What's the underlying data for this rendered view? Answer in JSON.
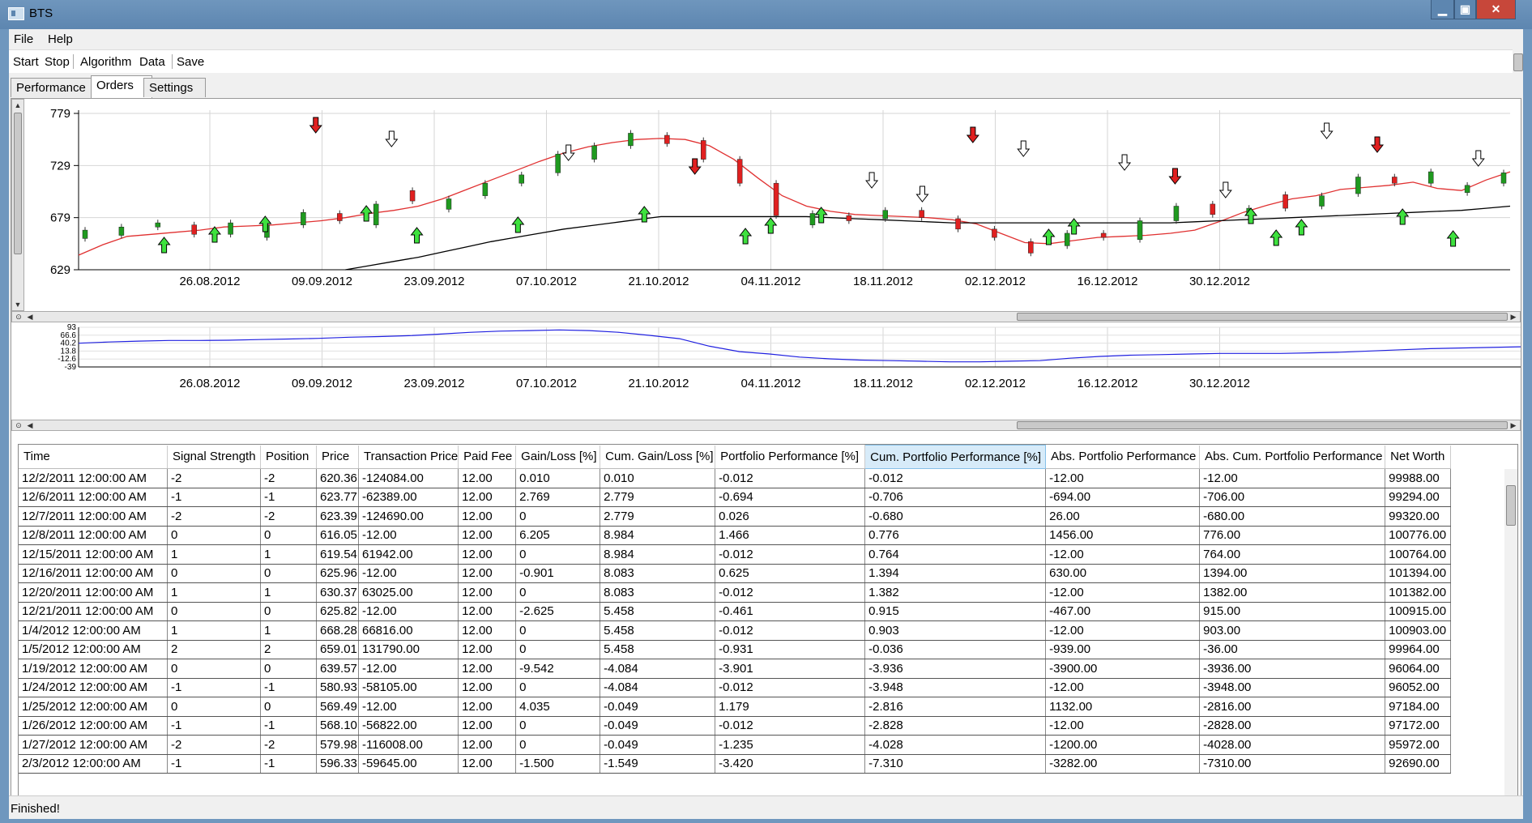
{
  "window": {
    "title": "BTS",
    "minimize": "▁",
    "maximize": "▣",
    "close": "✕"
  },
  "menu": {
    "file": "File",
    "help": "Help"
  },
  "toolbar": {
    "start": "Start",
    "stop": "Stop",
    "algorithm": "Algorithm",
    "data": "Data",
    "save": "Save"
  },
  "tabs": [
    {
      "label": "Performance"
    },
    {
      "label": "Orders"
    },
    {
      "label": "Settings"
    }
  ],
  "active_tab": "Orders",
  "chart_data": [
    {
      "type": "candlestick",
      "ylim": [
        629,
        779
      ],
      "y_ticks": [
        "779",
        "729",
        "679",
        "629"
      ],
      "x_ticks": [
        "26.08.2012",
        "09.09.2012",
        "23.09.2012",
        "07.10.2012",
        "21.10.2012",
        "04.11.2012",
        "18.11.2012",
        "02.12.2012",
        "16.12.2012",
        "30.12.2012"
      ],
      "series": [
        {
          "name": "",
          "color": "#e03030",
          "kind": "moving-average-fast",
          "values": [
            643,
            653,
            661,
            663,
            665,
            667,
            670,
            671,
            672,
            674,
            676,
            679,
            683,
            686,
            690,
            697,
            706,
            715,
            724,
            733,
            741,
            747,
            751,
            754,
            755,
            754,
            748,
            735,
            717,
            700,
            690,
            685,
            682,
            681,
            680,
            679,
            677,
            673,
            664,
            655,
            654,
            657,
            660,
            661,
            662,
            664,
            667,
            675,
            684,
            691,
            697,
            700,
            706,
            708,
            710,
            713,
            707,
            705,
            715,
            723
          ]
        },
        {
          "name": "",
          "color": "#000000",
          "kind": "moving-average-slow",
          "values": [
            null,
            null,
            null,
            null,
            null,
            null,
            null,
            null,
            null,
            null,
            null,
            629,
            633,
            637,
            641,
            646,
            651,
            656,
            660,
            664,
            668,
            671,
            674,
            677,
            680,
            680,
            680,
            680,
            680,
            680,
            680,
            679,
            678,
            677,
            676,
            675,
            674,
            674,
            674,
            674,
            674,
            674,
            674,
            674,
            674,
            674,
            675,
            676,
            677,
            678,
            679,
            680,
            681,
            682,
            683,
            684,
            685,
            686,
            688,
            690
          ]
        }
      ],
      "candles": [
        {
          "c": "g",
          "o": 659,
          "cl": 667
        },
        {
          "c": "g",
          "o": 662,
          "cl": 670
        },
        {
          "c": "g",
          "o": 670,
          "cl": 674
        },
        {
          "c": "r",
          "o": 672,
          "cl": 663
        },
        {
          "c": "g",
          "o": 663,
          "cl": 674
        },
        {
          "c": "g",
          "o": 660,
          "cl": 672
        },
        {
          "c": "g",
          "o": 672,
          "cl": 684
        },
        {
          "c": "r",
          "o": 683,
          "cl": 676
        },
        {
          "c": "g",
          "o": 672,
          "cl": 692
        },
        {
          "c": "r",
          "o": 705,
          "cl": 695
        },
        {
          "c": "g",
          "o": 687,
          "cl": 697
        },
        {
          "c": "g",
          "o": 700,
          "cl": 712
        },
        {
          "c": "g",
          "o": 712,
          "cl": 720
        },
        {
          "c": "g",
          "o": 722,
          "cl": 740
        },
        {
          "c": "g",
          "o": 735,
          "cl": 748
        },
        {
          "c": "g",
          "o": 748,
          "cl": 760
        },
        {
          "c": "r",
          "o": 758,
          "cl": 750
        },
        {
          "c": "r",
          "o": 753,
          "cl": 735
        },
        {
          "c": "r",
          "o": 735,
          "cl": 712
        },
        {
          "c": "r",
          "o": 712,
          "cl": 681
        },
        {
          "c": "g",
          "o": 672,
          "cl": 683
        },
        {
          "c": "r",
          "o": 681,
          "cl": 676
        },
        {
          "c": "g",
          "o": 678,
          "cl": 686
        },
        {
          "c": "r",
          "o": 686,
          "cl": 679
        },
        {
          "c": "r",
          "o": 678,
          "cl": 668
        },
        {
          "c": "r",
          "o": 668,
          "cl": 660
        },
        {
          "c": "r",
          "o": 656,
          "cl": 645
        },
        {
          "c": "g",
          "o": 652,
          "cl": 664
        },
        {
          "c": "r",
          "o": 664,
          "cl": 660
        },
        {
          "c": "g",
          "o": 658,
          "cl": 676
        },
        {
          "c": "g",
          "o": 676,
          "cl": 690
        },
        {
          "c": "r",
          "o": 692,
          "cl": 682
        },
        {
          "c": "g",
          "o": 681,
          "cl": 688
        },
        {
          "c": "r",
          "o": 701,
          "cl": 688
        },
        {
          "c": "g",
          "o": 690,
          "cl": 700
        },
        {
          "c": "g",
          "o": 702,
          "cl": 718
        },
        {
          "c": "r",
          "o": 718,
          "cl": 712
        },
        {
          "c": "g",
          "o": 712,
          "cl": 723
        },
        {
          "c": "g",
          "o": 703,
          "cl": 710
        },
        {
          "c": "g",
          "o": 712,
          "cl": 722
        }
      ]
    },
    {
      "type": "line",
      "ylim": [
        -39,
        93
      ],
      "y_ticks": [
        "93",
        "66.6",
        "40.2",
        "13.8",
        "-12.6",
        "-39"
      ],
      "x_ticks": [
        "26.08.2012",
        "09.09.2012",
        "23.09.2012",
        "07.10.2012",
        "21.10.2012",
        "04.11.2012",
        "18.11.2012",
        "02.12.2012",
        "16.12.2012",
        "30.12.2012"
      ],
      "series": [
        {
          "name": "",
          "color": "#2020e0",
          "values": [
            40,
            44,
            47,
            49,
            49,
            50,
            52,
            54,
            56,
            60,
            62,
            65,
            70,
            76,
            80,
            82,
            84,
            82,
            76,
            66,
            55,
            30,
            12,
            4,
            -6,
            -12,
            -16,
            -18,
            -20,
            -22,
            -22,
            -20,
            -18,
            -10,
            -4,
            0,
            2,
            4,
            6,
            6,
            6,
            8,
            10,
            14,
            18,
            22,
            24,
            26,
            28
          ]
        }
      ]
    }
  ],
  "grid": {
    "columns": [
      "Time",
      "Signal Strength",
      "Position",
      "Price",
      "Transaction Price",
      "Paid Fee",
      "Gain/Loss [%]",
      "Cum. Gain/Loss [%]",
      "Portfolio Performance [%]",
      "Cum. Portfolio Performance [%]",
      "Abs. Portfolio Performance",
      "Abs. Cum. Portfolio Performance",
      "Net Worth"
    ],
    "rows": [
      [
        "12/2/2011 12:00:00 AM",
        "-2",
        "-2",
        "620.36",
        "-124084.00",
        "12.00",
        "0.010",
        "0.010",
        "-0.012",
        "-0.012",
        "-12.00",
        "-12.00",
        "99988.00"
      ],
      [
        "12/6/2011 12:00:00 AM",
        "-1",
        "-1",
        "623.77",
        "-62389.00",
        "12.00",
        "2.769",
        "2.779",
        "-0.694",
        "-0.706",
        "-694.00",
        "-706.00",
        "99294.00"
      ],
      [
        "12/7/2011 12:00:00 AM",
        "-2",
        "-2",
        "623.39",
        "-124690.00",
        "12.00",
        "0",
        "2.779",
        "0.026",
        "-0.680",
        "26.00",
        "-680.00",
        "99320.00"
      ],
      [
        "12/8/2011 12:00:00 AM",
        "0",
        "0",
        "616.05",
        "-12.00",
        "12.00",
        "6.205",
        "8.984",
        "1.466",
        "0.776",
        "1456.00",
        "776.00",
        "100776.00"
      ],
      [
        "12/15/2011 12:00:00 AM",
        "1",
        "1",
        "619.54",
        "61942.00",
        "12.00",
        "0",
        "8.984",
        "-0.012",
        "0.764",
        "-12.00",
        "764.00",
        "100764.00"
      ],
      [
        "12/16/2011 12:00:00 AM",
        "0",
        "0",
        "625.96",
        "-12.00",
        "12.00",
        "-0.901",
        "8.083",
        "0.625",
        "1.394",
        "630.00",
        "1394.00",
        "101394.00"
      ],
      [
        "12/20/2011 12:00:00 AM",
        "1",
        "1",
        "630.37",
        "63025.00",
        "12.00",
        "0",
        "8.083",
        "-0.012",
        "1.382",
        "-12.00",
        "1382.00",
        "101382.00"
      ],
      [
        "12/21/2011 12:00:00 AM",
        "0",
        "0",
        "625.82",
        "-12.00",
        "12.00",
        "-2.625",
        "5.458",
        "-0.461",
        "0.915",
        "-467.00",
        "915.00",
        "100915.00"
      ],
      [
        "1/4/2012 12:00:00 AM",
        "1",
        "1",
        "668.28",
        "66816.00",
        "12.00",
        "0",
        "5.458",
        "-0.012",
        "0.903",
        "-12.00",
        "903.00",
        "100903.00"
      ],
      [
        "1/5/2012 12:00:00 AM",
        "2",
        "2",
        "659.01",
        "131790.00",
        "12.00",
        "0",
        "5.458",
        "-0.931",
        "-0.036",
        "-939.00",
        "-36.00",
        "99964.00"
      ],
      [
        "1/19/2012 12:00:00 AM",
        "0",
        "0",
        "639.57",
        "-12.00",
        "12.00",
        "-9.542",
        "-4.084",
        "-3.901",
        "-3.936",
        "-3900.00",
        "-3936.00",
        "96064.00"
      ],
      [
        "1/24/2012 12:00:00 AM",
        "-1",
        "-1",
        "580.93",
        "-58105.00",
        "12.00",
        "0",
        "-4.084",
        "-0.012",
        "-3.948",
        "-12.00",
        "-3948.00",
        "96052.00"
      ],
      [
        "1/25/2012 12:00:00 AM",
        "0",
        "0",
        "569.49",
        "-12.00",
        "12.00",
        "4.035",
        "-0.049",
        "1.179",
        "-2.816",
        "1132.00",
        "-2816.00",
        "97184.00"
      ],
      [
        "1/26/2012 12:00:00 AM",
        "-1",
        "-1",
        "568.10",
        "-56822.00",
        "12.00",
        "0",
        "-0.049",
        "-0.012",
        "-2.828",
        "-12.00",
        "-2828.00",
        "97172.00"
      ],
      [
        "1/27/2012 12:00:00 AM",
        "-2",
        "-2",
        "579.98",
        "-116008.00",
        "12.00",
        "0",
        "-0.049",
        "-1.235",
        "-4.028",
        "-1200.00",
        "-4028.00",
        "95972.00"
      ],
      [
        "2/3/2012 12:00:00 AM",
        "-1",
        "-1",
        "596.33",
        "-59645.00",
        "12.00",
        "-1.500",
        "-1.549",
        "-3.420",
        "-7.310",
        "-3282.00",
        "-7310.00",
        "92690.00"
      ]
    ]
  },
  "status": "Finished!"
}
